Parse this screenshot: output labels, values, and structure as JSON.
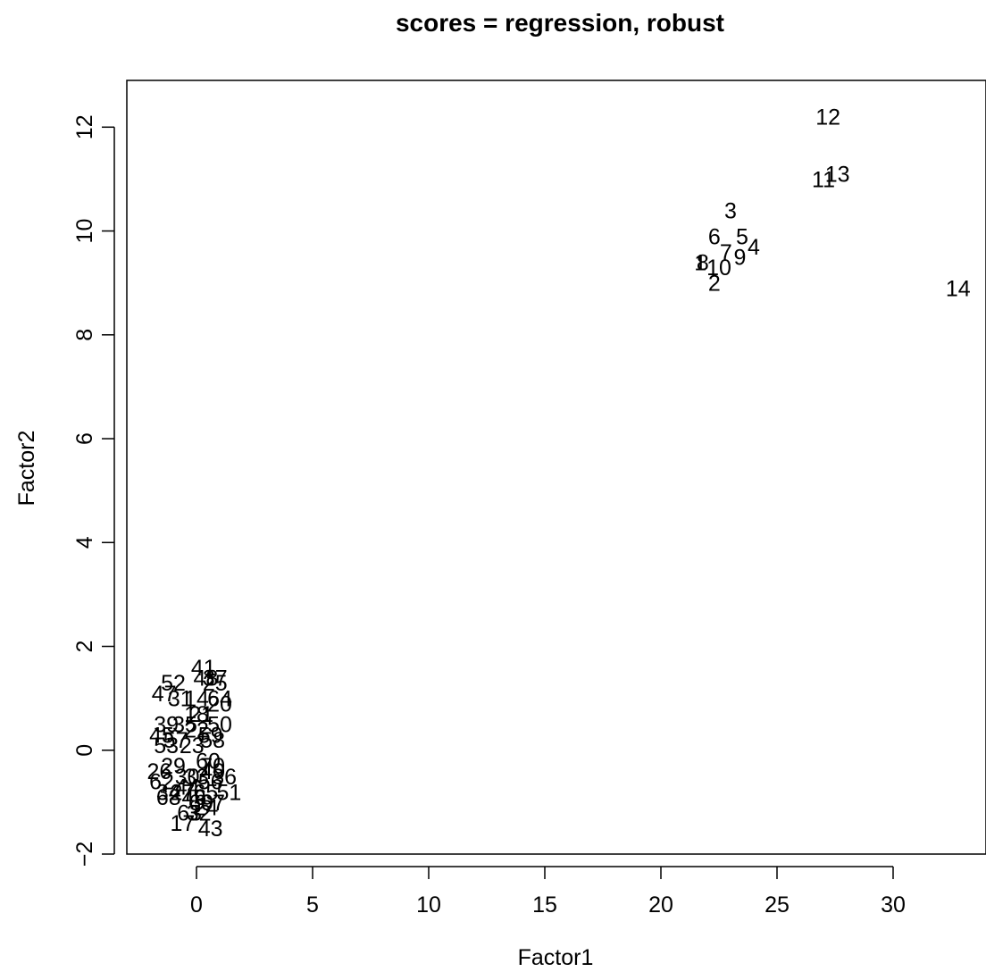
{
  "chart_data": {
    "type": "scatter",
    "title": "scores = regression, robust",
    "xlabel": "Factor1",
    "ylabel": "Factor2",
    "xlim": [
      -3.0,
      34.0
    ],
    "ylim": [
      -2.0,
      12.9
    ],
    "x_ticks": [
      0,
      5,
      10,
      15,
      20,
      25,
      30
    ],
    "y_ticks": [
      -2,
      0,
      2,
      4,
      6,
      8,
      10,
      12
    ],
    "x_tick_labels": [
      "0",
      "5",
      "10",
      "15",
      "20",
      "25",
      "30"
    ],
    "y_tick_labels": [
      "−2",
      "0",
      "2",
      "4",
      "6",
      "8",
      "10",
      "12"
    ],
    "grid": false,
    "points": [
      {
        "label": "1",
        "x": 21.7,
        "y": 9.4
      },
      {
        "label": "2",
        "x": 22.3,
        "y": 9.0
      },
      {
        "label": "3",
        "x": 23.0,
        "y": 10.4
      },
      {
        "label": "4",
        "x": 24.0,
        "y": 9.7
      },
      {
        "label": "5",
        "x": 23.5,
        "y": 9.9
      },
      {
        "label": "6",
        "x": 22.3,
        "y": 9.9
      },
      {
        "label": "7",
        "x": 22.8,
        "y": 9.6
      },
      {
        "label": "8",
        "x": 21.8,
        "y": 9.4
      },
      {
        "label": "9",
        "x": 23.4,
        "y": 9.5
      },
      {
        "label": "10",
        "x": 22.5,
        "y": 9.3
      },
      {
        "label": "11",
        "x": 27.0,
        "y": 11.0
      },
      {
        "label": "12",
        "x": 27.2,
        "y": 12.2
      },
      {
        "label": "13",
        "x": 27.6,
        "y": 11.1
      },
      {
        "label": "14",
        "x": 32.8,
        "y": 8.9
      },
      {
        "label": "41",
        "x": 0.3,
        "y": 1.6
      },
      {
        "label": "48",
        "x": 0.4,
        "y": 1.4
      },
      {
        "label": "37",
        "x": 0.8,
        "y": 1.4
      },
      {
        "label": "52",
        "x": -1.0,
        "y": 1.3
      },
      {
        "label": "25",
        "x": 0.8,
        "y": 1.3
      },
      {
        "label": "47",
        "x": -1.4,
        "y": 1.1
      },
      {
        "label": "31",
        "x": -0.7,
        "y": 1.0
      },
      {
        "label": "14",
        "x": 0.0,
        "y": 1.0
      },
      {
        "label": "64",
        "x": 1.0,
        "y": 1.0
      },
      {
        "label": "20",
        "x": 1.0,
        "y": 0.9
      },
      {
        "label": "18",
        "x": 0.0,
        "y": 0.7
      },
      {
        "label": "21",
        "x": 0.2,
        "y": 0.7
      },
      {
        "label": "39",
        "x": -1.3,
        "y": 0.5
      },
      {
        "label": "35",
        "x": -0.5,
        "y": 0.5
      },
      {
        "label": "50",
        "x": 1.0,
        "y": 0.5
      },
      {
        "label": "22",
        "x": 0.0,
        "y": 0.4
      },
      {
        "label": "59",
        "x": 0.6,
        "y": 0.3
      },
      {
        "label": "58",
        "x": 0.7,
        "y": 0.2
      },
      {
        "label": "45",
        "x": -1.5,
        "y": 0.3
      },
      {
        "label": "57",
        "x": -0.9,
        "y": 0.2
      },
      {
        "label": "53",
        "x": -1.3,
        "y": 0.1
      },
      {
        "label": "23",
        "x": -0.2,
        "y": 0.1
      },
      {
        "label": "60",
        "x": 0.5,
        "y": -0.2
      },
      {
        "label": "70",
        "x": 0.7,
        "y": -0.3
      },
      {
        "label": "29",
        "x": -1.0,
        "y": -0.3
      },
      {
        "label": "26",
        "x": -1.6,
        "y": -0.4
      },
      {
        "label": "40",
        "x": 0.7,
        "y": -0.4
      },
      {
        "label": "33",
        "x": 0.0,
        "y": -0.5
      },
      {
        "label": "30",
        "x": -0.4,
        "y": -0.5
      },
      {
        "label": "62",
        "x": -1.5,
        "y": -0.6
      },
      {
        "label": "36",
        "x": 1.2,
        "y": -0.5
      },
      {
        "label": "56",
        "x": 0.6,
        "y": -0.6
      },
      {
        "label": "44",
        "x": -0.4,
        "y": -0.7
      },
      {
        "label": "51",
        "x": 1.4,
        "y": -0.8
      },
      {
        "label": "34",
        "x": -1.2,
        "y": -0.8
      },
      {
        "label": "27",
        "x": -0.6,
        "y": -0.8
      },
      {
        "label": "65",
        "x": 0.4,
        "y": -0.8
      },
      {
        "label": "68",
        "x": -1.2,
        "y": -0.9
      },
      {
        "label": "46",
        "x": -0.1,
        "y": -0.9
      },
      {
        "label": "67",
        "x": 0.7,
        "y": -1.0
      },
      {
        "label": "69",
        "x": 0.2,
        "y": -1.0
      },
      {
        "label": "63",
        "x": -0.3,
        "y": -1.2
      },
      {
        "label": "32",
        "x": 0.1,
        "y": -1.2
      },
      {
        "label": "24",
        "x": 0.4,
        "y": -1.1
      },
      {
        "label": "17",
        "x": -0.6,
        "y": -1.4
      },
      {
        "label": "43",
        "x": 0.6,
        "y": -1.5
      }
    ]
  }
}
